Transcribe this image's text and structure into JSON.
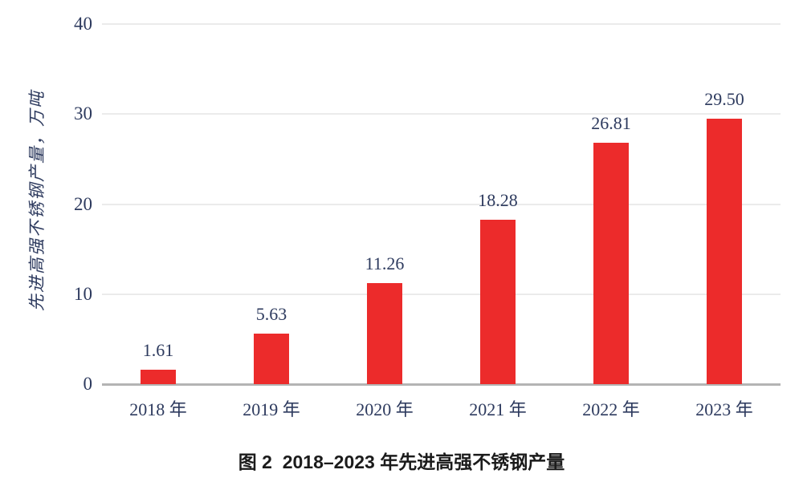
{
  "figure": {
    "caption": "图 2  2018–2023 年先进高强不锈钢产量"
  },
  "chart_data": {
    "type": "bar",
    "title": "图 2 2018–2023 年先进高强不锈钢产量",
    "ylabel": "先进高强不锈钢产量，万吨",
    "xlabel": "",
    "categories": [
      "2018 年",
      "2019 年",
      "2020 年",
      "2021 年",
      "2022 年",
      "2023 年"
    ],
    "values": [
      1.61,
      5.63,
      11.26,
      18.28,
      26.81,
      29.5
    ],
    "value_labels": [
      "1.61",
      "5.63",
      "11.26",
      "18.28",
      "26.81",
      "29.50"
    ],
    "ylim": [
      0,
      40
    ],
    "yticks": [
      0,
      10,
      20,
      30,
      40
    ],
    "grid": "horizontal-light",
    "legend": "none",
    "colors": {
      "bar": "#ec2b2b",
      "axis_text": "#2d3a5e",
      "gridline": "#ebebeb",
      "baseline": "#b4b4b4",
      "caption_text": "#1b1b1b"
    }
  }
}
